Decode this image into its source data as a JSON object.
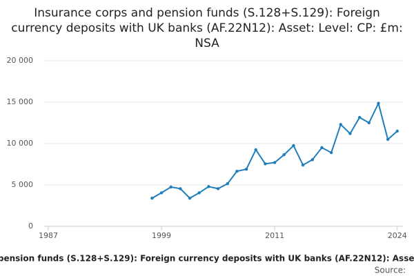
{
  "chart_data": {
    "type": "line",
    "title": "Insurance corps and pension funds (S.128+S.129): Foreign currency deposits with UK banks (AF.22N12): Asset: Level: CP: £m: NSA",
    "source": "Source:",
    "x": [
      1998,
      1999,
      2000,
      2001,
      2002,
      2003,
      2004,
      2005,
      2006,
      2007,
      2008,
      2009,
      2010,
      2011,
      2012,
      2013,
      2014,
      2015,
      2016,
      2017,
      2018,
      2019,
      2020,
      2021,
      2022,
      2023,
      2024
    ],
    "series": [
      {
        "name": "Insurance corps and pension funds (S.128+S.129): Foreign currency deposits with UK banks (AF.22N12): Asset: Level: CP: £m: NSA",
        "color": "#1f7dba",
        "values": [
          3400,
          4050,
          4750,
          4550,
          3400,
          4050,
          4800,
          4550,
          5150,
          6650,
          6900,
          9250,
          7550,
          7700,
          8650,
          9750,
          7400,
          8050,
          9500,
          8900,
          12300,
          11200,
          13150,
          12500,
          14850,
          10500,
          11500
        ]
      }
    ],
    "xlim": [
      1986.56,
      2024.6
    ],
    "xticks": [
      1987,
      1999,
      2011,
      2024
    ],
    "ylim": [
      0,
      20000
    ],
    "yticks": [
      0,
      {
        "value": 5000,
        "label": "5 000"
      },
      {
        "value": 10000,
        "label": "10 000"
      },
      {
        "value": 15000,
        "label": "15 000"
      },
      {
        "value": 20000,
        "label": "20 000"
      }
    ],
    "grid": true
  }
}
